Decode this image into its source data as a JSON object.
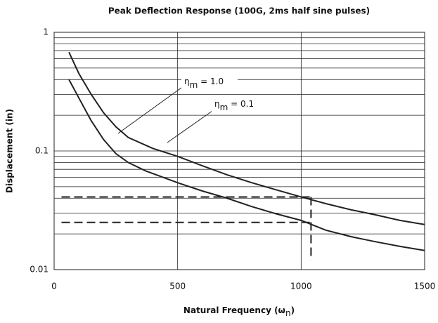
{
  "chart_data": {
    "type": "line",
    "title": "Peak Deflection Response (100G, 2ms half sine pulses)",
    "y_label": "Displacement (in)",
    "x_label": {
      "text": "Natural Frequency  (ω",
      "subscript": "n",
      "end": ")"
    },
    "xlim": [
      0,
      1500
    ],
    "xticks": [
      0,
      500,
      1000,
      1500
    ],
    "ylim": [
      0.01,
      1
    ],
    "yticks": [
      0.01,
      0.1,
      1
    ],
    "log_y": true,
    "grid": true,
    "series": [
      {
        "color": "#222222",
        "x": [
          60,
          100,
          150,
          200,
          250,
          300,
          400,
          500,
          600,
          700,
          800,
          900,
          1000,
          1100,
          1200,
          1300,
          1400,
          1500
        ],
        "values": [
          0.68,
          0.45,
          0.3,
          0.21,
          0.16,
          0.13,
          0.105,
          0.09,
          0.075,
          0.063,
          0.054,
          0.047,
          0.041,
          0.036,
          0.032,
          0.029,
          0.026,
          0.024
        ]
      },
      {
        "color": "#222222",
        "x": [
          60,
          100,
          150,
          200,
          250,
          300,
          370,
          500,
          600,
          700,
          800,
          900,
          1000,
          1100,
          1200,
          1300,
          1400,
          1500
        ],
        "values": [
          0.4,
          0.28,
          0.18,
          0.125,
          0.095,
          0.08,
          0.068,
          0.054,
          0.046,
          0.04,
          0.034,
          0.0295,
          0.026,
          0.0215,
          0.019,
          0.0172,
          0.0157,
          0.0145
        ]
      }
    ],
    "reference_lines": [
      {
        "x": [
          30,
          1035
        ],
        "values": [
          0.041,
          0.041
        ]
      },
      {
        "x": [
          30,
          1035
        ],
        "values": [
          0.025,
          0.025
        ]
      },
      {
        "x": [
          1040,
          1040
        ],
        "values": [
          0.041,
          0.012
        ]
      }
    ],
    "annotations": [
      {
        "symbol": "η",
        "subscript": "m",
        "text": " = 1.0"
      },
      {
        "symbol": "η",
        "subscript": "m",
        "text": " = 0.1"
      }
    ]
  }
}
